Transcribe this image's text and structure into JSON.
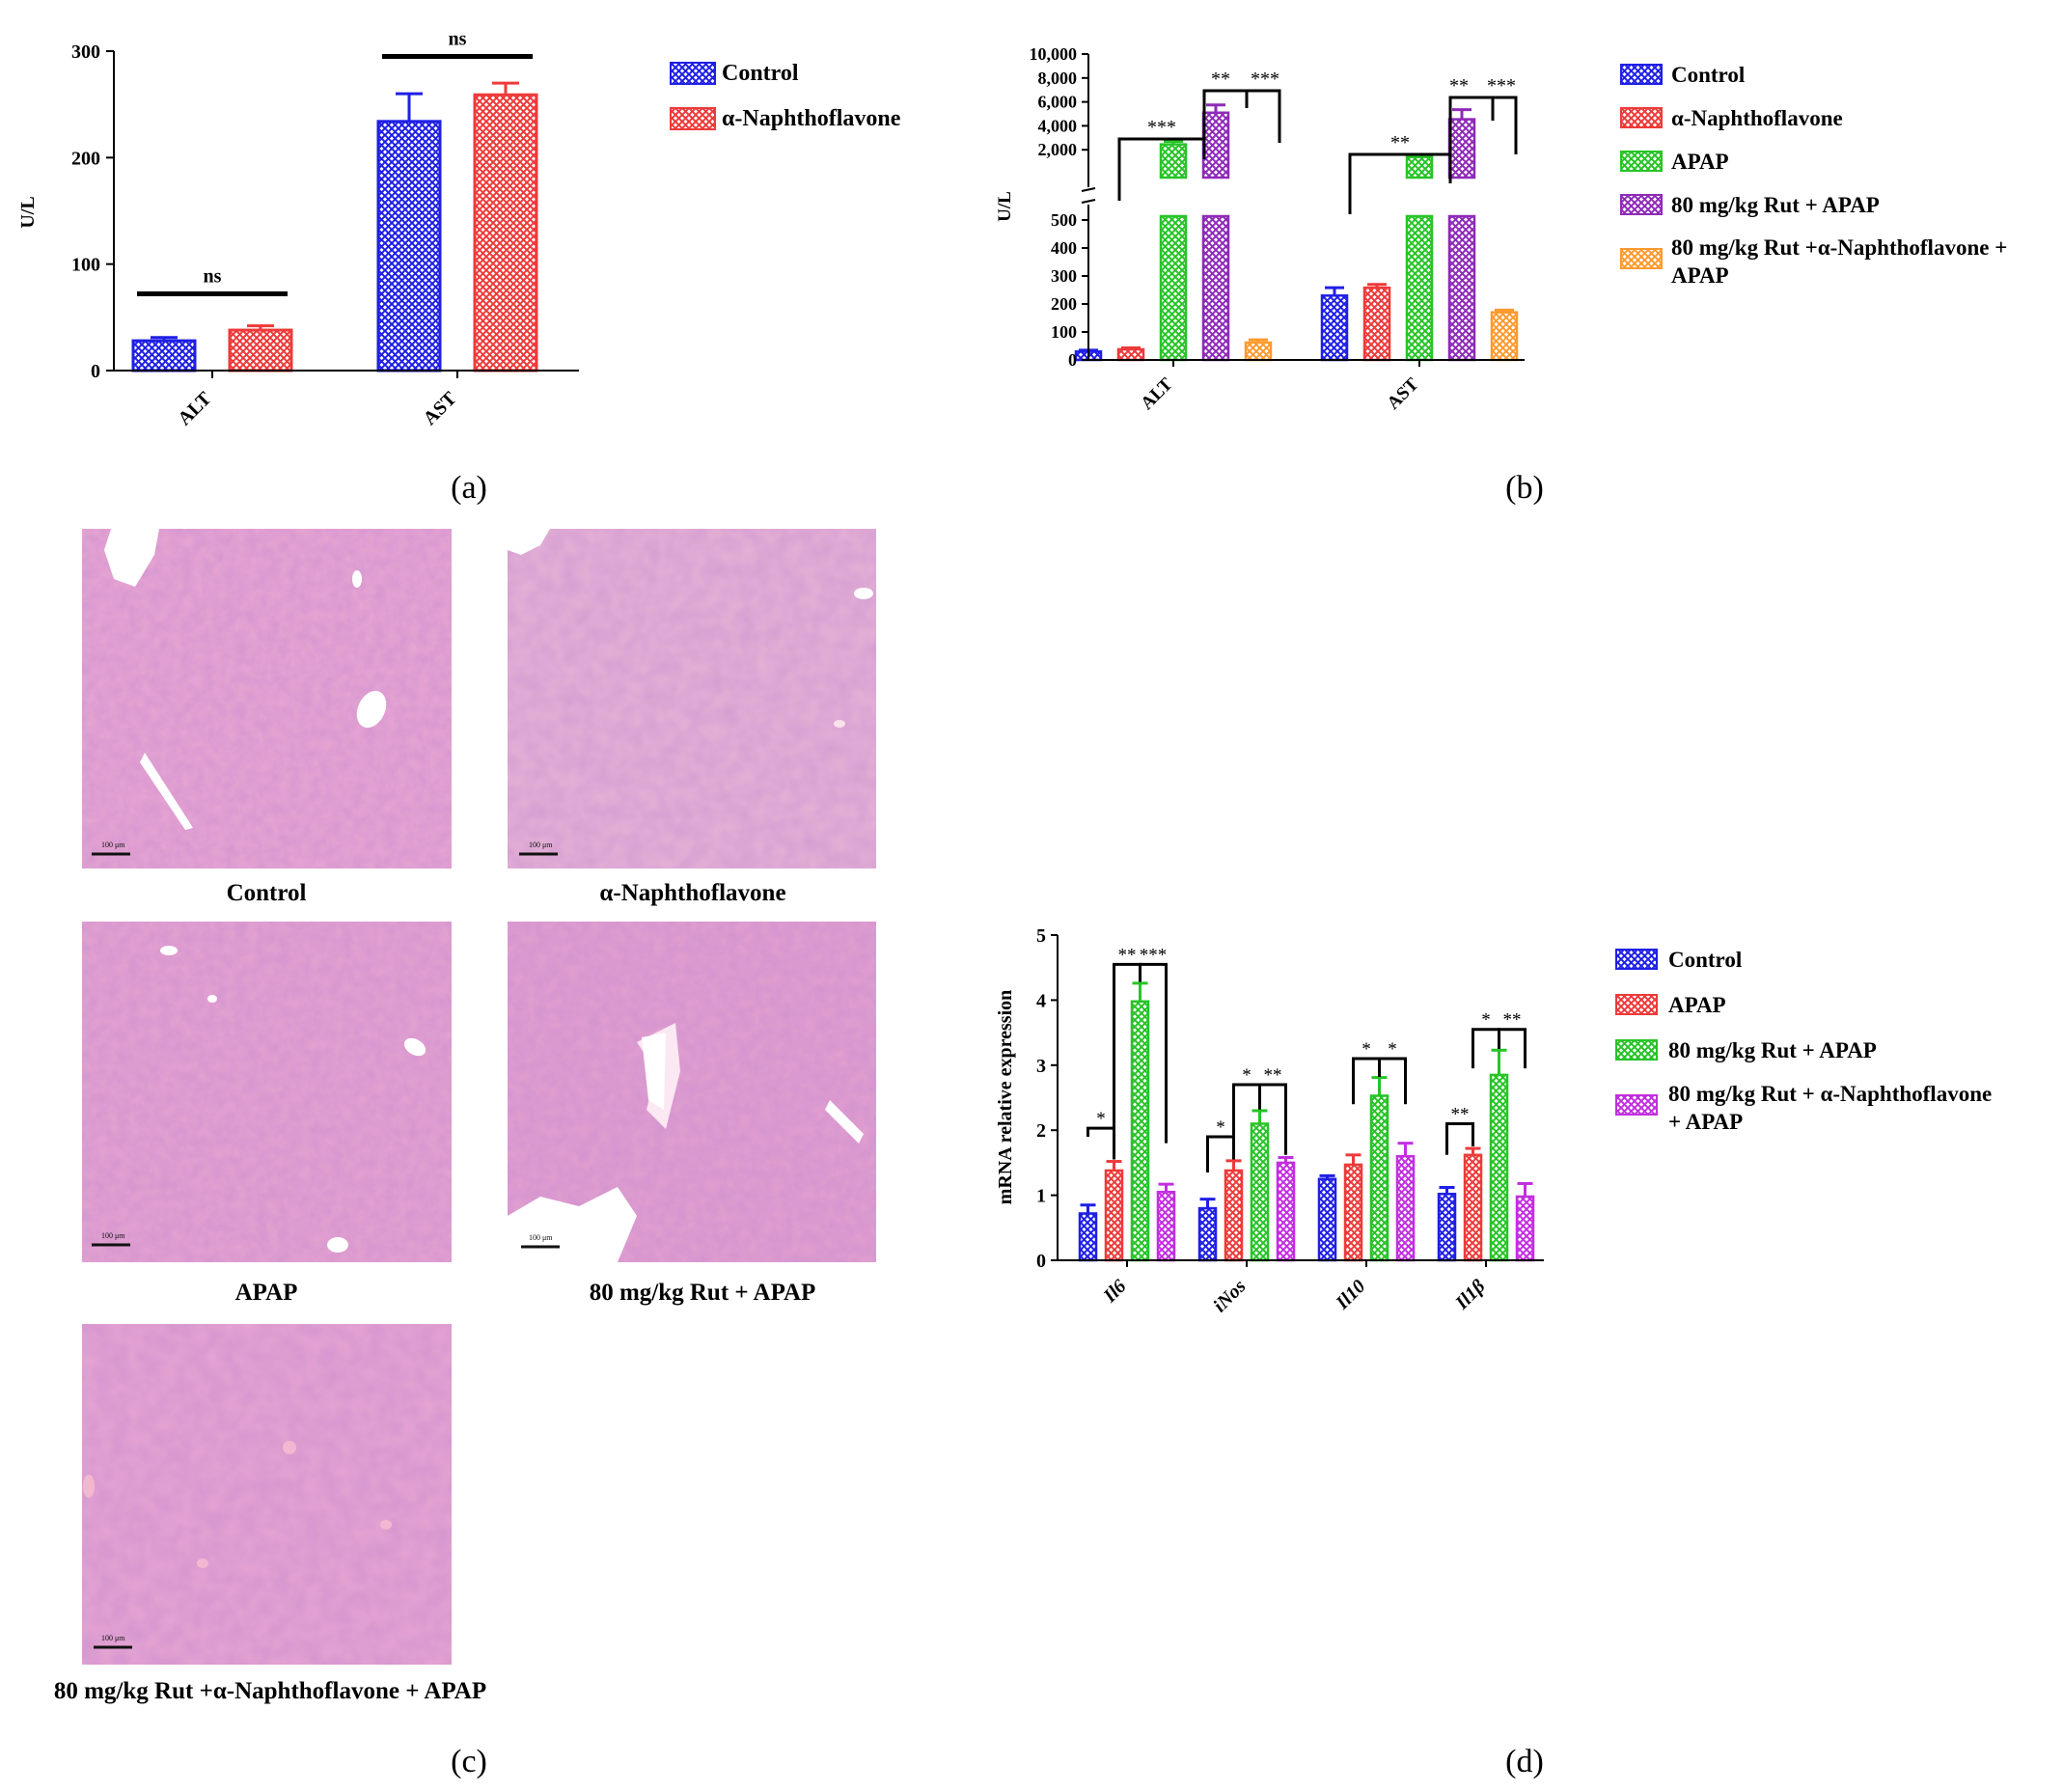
{
  "colors": {
    "control": "#1f1fe6",
    "naphtho": "#ee3a3a",
    "apap": "#27c427",
    "rut_apap": "#8e2bb8",
    "rut_naphtho_apap": "#ff9a2e",
    "magenta": "#c22fe0"
  },
  "chart_data": [
    {
      "panel": "a",
      "panel_label": "(a)",
      "type": "bar",
      "categories": [
        "ALT",
        "AST"
      ],
      "series": [
        {
          "name": "Control",
          "color": "control",
          "values": [
            28,
            234
          ],
          "errors": [
            3,
            26
          ]
        },
        {
          "name": "α-Naphthoflavone",
          "color": "naphtho",
          "values": [
            38,
            259
          ],
          "errors": [
            4,
            11
          ]
        }
      ],
      "ylabel": "U/L",
      "ylim": [
        0,
        300
      ],
      "yticks": [
        0,
        100,
        200,
        300
      ],
      "significance": [
        {
          "category": 0,
          "text": "ns",
          "y": 72
        },
        {
          "category": 1,
          "text": "ns",
          "y": 295
        }
      ]
    },
    {
      "panel": "b",
      "panel_label": "(b)",
      "type": "bar",
      "categories": [
        "ALT",
        "AST"
      ],
      "series": [
        {
          "name": "Control",
          "color": "control",
          "values": [
            30,
            230
          ],
          "errors": [
            5,
            28
          ]
        },
        {
          "name": "α-Naphthoflavone",
          "color": "naphtho",
          "values": [
            38,
            258
          ],
          "errors": [
            5,
            12
          ]
        },
        {
          "name": "APAP",
          "color": "apap",
          "values": [
            2450,
            1400
          ],
          "errors": [
            250,
            150
          ]
        },
        {
          "name": "80 mg/kg Rut + APAP",
          "color": "rut_apap",
          "values": [
            5100,
            4550
          ],
          "errors": [
            650,
            800
          ]
        },
        {
          "name": "80 mg/kg Rut +α-Naphthoflavone + APAP",
          "color": "rut_naphtho_apap",
          "values": [
            62,
            170
          ],
          "errors": [
            10,
            8
          ]
        }
      ],
      "ylabel": "U/L",
      "broken_axis": {
        "lower": [
          0,
          500
        ],
        "upper": [
          0,
          10000
        ]
      },
      "yticks_lower": [
        0,
        100,
        200,
        300,
        400,
        500
      ],
      "yticks_upper": [
        "2,000",
        "4,000",
        "6,000",
        "8,000",
        "10,000"
      ],
      "yticks_upper_values": [
        2000,
        4000,
        6000,
        8000,
        10000
      ],
      "significance": [
        {
          "category": 0,
          "text": "***"
        },
        {
          "category": 0,
          "text": "**"
        },
        {
          "category": 0,
          "text": "***"
        },
        {
          "category": 1,
          "text": "**"
        },
        {
          "category": 1,
          "text": "**"
        },
        {
          "category": 1,
          "text": "***"
        }
      ]
    },
    {
      "panel": "d",
      "panel_label": "(d)",
      "type": "bar",
      "categories": [
        "Il6",
        "iNos",
        "Il10",
        "Il1β"
      ],
      "series": [
        {
          "name": "Control",
          "color": "control",
          "values": [
            0.72,
            0.8,
            1.25,
            1.02
          ],
          "errors": [
            0.13,
            0.14,
            0.05,
            0.1
          ]
        },
        {
          "name": "APAP",
          "color": "naphtho",
          "values": [
            1.38,
            1.38,
            1.47,
            1.62
          ],
          "errors": [
            0.14,
            0.15,
            0.15,
            0.1
          ]
        },
        {
          "name": "80 mg/kg Rut + APAP",
          "color": "apap",
          "values": [
            3.98,
            2.1,
            2.53,
            2.85
          ],
          "errors": [
            0.28,
            0.2,
            0.28,
            0.38
          ]
        },
        {
          "name": "80 mg/kg Rut + α-Naphthoflavone + APAP",
          "color": "magenta",
          "values": [
            1.05,
            1.5,
            1.6,
            0.98
          ],
          "errors": [
            0.12,
            0.08,
            0.2,
            0.2
          ]
        }
      ],
      "ylabel": "mRNA relative expression",
      "ylim": [
        0,
        5
      ],
      "yticks": [
        0,
        1,
        2,
        3,
        4,
        5
      ],
      "significance": [
        {
          "category": 0,
          "text": "*"
        },
        {
          "category": 0,
          "text": "**"
        },
        {
          "category": 0,
          "text": "***"
        },
        {
          "category": 1,
          "text": "*"
        },
        {
          "category": 1,
          "text": "*"
        },
        {
          "category": 1,
          "text": "**"
        },
        {
          "category": 2,
          "text": "*"
        },
        {
          "category": 2,
          "text": "*"
        },
        {
          "category": 3,
          "text": "**"
        },
        {
          "category": 3,
          "text": "*"
        },
        {
          "category": 3,
          "text": "**"
        }
      ]
    }
  ],
  "panel_c": {
    "label": "(c)",
    "images": [
      {
        "caption": "Control",
        "scale_bar": "100 μm"
      },
      {
        "caption": "α-Naphthoflavone",
        "scale_bar": "100 μm"
      },
      {
        "caption": "APAP",
        "scale_bar": "100 μm"
      },
      {
        "caption": "80 mg/kg Rut + APAP",
        "scale_bar": "100 μm"
      },
      {
        "caption": "80 mg/kg Rut +α-Naphthoflavone + APAP",
        "scale_bar": "100 μm"
      }
    ]
  },
  "legends": {
    "a": [
      "Control",
      "α-Naphthoflavone"
    ],
    "b": [
      "Control",
      "α-Naphthoflavone",
      "APAP",
      "80 mg/kg Rut + APAP",
      "80 mg/kg Rut +α-Naphthoflavone +",
      "APAP"
    ],
    "d": [
      "Control",
      "APAP",
      "80 mg/kg Rut + APAP",
      "80 mg/kg Rut + α-Naphthoflavone",
      "+ APAP"
    ]
  }
}
